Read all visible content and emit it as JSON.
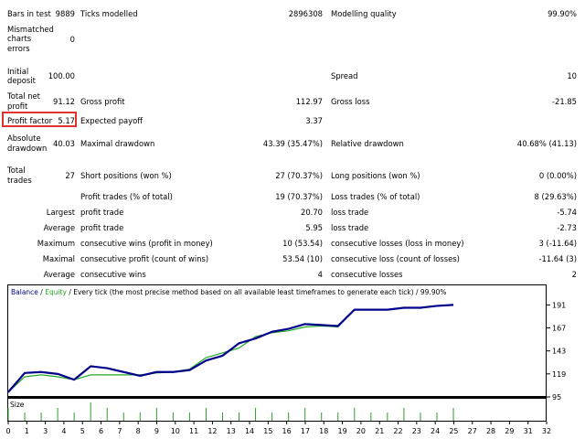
{
  "report": {
    "bars_in_test_label": "Bars in test",
    "bars_in_test_value": "9889",
    "ticks_modelled_label": "Ticks modelled",
    "ticks_modelled_value": "2896308",
    "modelling_quality_label": "Modelling quality",
    "modelling_quality_value": "99.90%",
    "mismatched_label_1": "Mismatched",
    "mismatched_label_2": "charts",
    "mismatched_label_3": "errors",
    "mismatched_value": "0",
    "initial_deposit_label_1": "Initial",
    "initial_deposit_label_2": "deposit",
    "initial_deposit_value": "100.00",
    "spread_label": "Spread",
    "spread_value": "10",
    "total_net_profit_label_1": "Total net",
    "total_net_profit_label_2": "profit",
    "total_net_profit_value": "91.12",
    "gross_profit_label": "Gross profit",
    "gross_profit_value": "112.97",
    "gross_loss_label": "Gross loss",
    "gross_loss_value": "-21.85",
    "profit_factor_label": "Profit factor",
    "profit_factor_value": "5.17",
    "expected_payoff_label": "Expected payoff",
    "expected_payoff_value": "3.37",
    "absolute_drawdown_label_1": "Absolute",
    "absolute_drawdown_label_2": "drawdown",
    "absolute_drawdown_value": "40.03",
    "maximal_drawdown_label": "Maximal drawdown",
    "maximal_drawdown_value": "43.39 (35.47%)",
    "relative_drawdown_label": "Relative drawdown",
    "relative_drawdown_value": "40.68% (41.13)",
    "total_trades_label_1": "Total",
    "total_trades_label_2": "trades",
    "total_trades_value": "27",
    "short_positions_label": "Short positions (won %)",
    "short_positions_value": "27 (70.37%)",
    "long_positions_label": "Long positions (won %)",
    "long_positions_value": "0 (0.00%)",
    "profit_trades_label": "Profit trades (% of total)",
    "profit_trades_value": "19 (70.37%)",
    "loss_trades_label": "Loss trades (% of total)",
    "loss_trades_value": "8 (29.63%)",
    "largest_label": "Largest",
    "largest_profit_label": "profit trade",
    "largest_profit_value": "20.70",
    "largest_loss_label": "loss trade",
    "largest_loss_value": "-5.74",
    "average_label": "Average",
    "average_profit_label": "profit trade",
    "average_profit_value": "5.95",
    "average_loss_label": "loss trade",
    "average_loss_value": "-2.73",
    "maximum_label": "Maximum",
    "max_cons_wins_label": "consecutive wins (profit in money)",
    "max_cons_wins_value": "10 (53.54)",
    "max_cons_losses_label": "consecutive losses (loss in money)",
    "max_cons_losses_value": "3 (-11.64)",
    "maximal_label": "Maximal",
    "maximal_cons_profit_label": "consecutive profit (count of wins)",
    "maximal_cons_profit_value": "53.54 (10)",
    "maximal_cons_loss_label": "consecutive loss (count of losses)",
    "maximal_cons_loss_value": "-11.64 (3)",
    "average2_label": "Average",
    "avg_cons_wins_label": "consecutive wins",
    "avg_cons_wins_value": "4",
    "avg_cons_losses_label": "consecutive losses",
    "avg_cons_losses_value": "2"
  },
  "chart_header": {
    "balance": "Balance",
    "sep1": " / ",
    "equity": "Equity",
    "rest": " / Every tick (the most precise method based on all available least timeframes to generate each tick) / 99.90%"
  },
  "colors": {
    "balance": "#00008b",
    "equity": "#22aa22",
    "volume": "#2a9d2a",
    "highlight": "#e0332f"
  },
  "chart_data": {
    "type": "line",
    "x": [
      0,
      1,
      2,
      3,
      4,
      5,
      6,
      7,
      8,
      9,
      10,
      11,
      12,
      13,
      14,
      15,
      16,
      17,
      18,
      19,
      20,
      21,
      22,
      23,
      24,
      25,
      26,
      27
    ],
    "series": [
      {
        "name": "Balance",
        "values": [
          100,
          120,
          121,
          119,
          113,
          127,
          125,
          121,
          117,
          121,
          121,
          123,
          133,
          138,
          151,
          156,
          163,
          166,
          171,
          170,
          169,
          186,
          186,
          186,
          188,
          188,
          190,
          191
        ]
      },
      {
        "name": "Equity",
        "values": [
          100,
          116,
          118,
          116,
          113,
          118,
          118,
          118,
          118,
          120,
          121,
          124,
          136,
          141,
          146,
          158,
          162,
          164,
          168,
          169,
          168,
          186,
          186,
          186,
          188,
          188,
          190,
          191
        ]
      }
    ],
    "ylim": [
      95,
      199
    ],
    "y_ticks": [
      "191",
      "167",
      "143",
      "119",
      "95"
    ],
    "x_ticks": [
      "0",
      "1",
      "3",
      "4",
      "5",
      "6",
      "7",
      "8",
      "9",
      "10",
      "11",
      "12",
      "13",
      "14",
      "15",
      "16",
      "17",
      "18",
      "19",
      "20",
      "21",
      "22",
      "23",
      "24",
      "25",
      "27",
      "28",
      "29",
      "31",
      "32"
    ],
    "volume_label": "Size",
    "volume": [
      1,
      1,
      1,
      1,
      1,
      1,
      1,
      1,
      1,
      1,
      1,
      1,
      1,
      1,
      1,
      1,
      1,
      1,
      1,
      1,
      1,
      1,
      1,
      1,
      1,
      1,
      1,
      1
    ]
  }
}
